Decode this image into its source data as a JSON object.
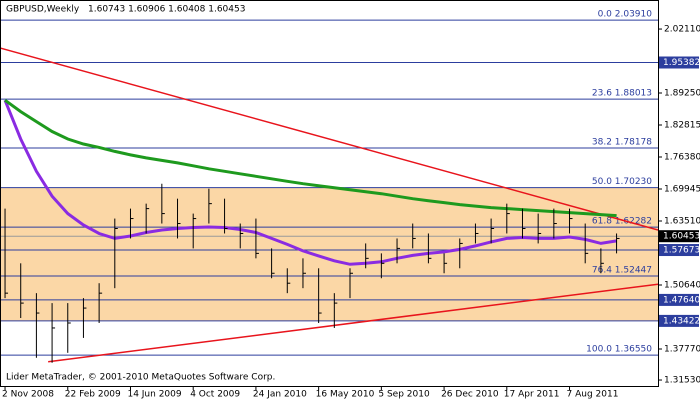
{
  "chart_data": {
    "type": "ohlc",
    "title": "GBPUSD,Weekly",
    "quote": "1.60743 1.60906 1.60408 1.60453",
    "footer": "Lider MetaTrader, © 2001-2010 MetaQuotes Software Corp.",
    "x": [
      "2008-11-02",
      "2008-11-30",
      "2008-12-28",
      "2009-01-25",
      "2009-02-22",
      "2009-03-22",
      "2009-04-19",
      "2009-05-17",
      "2009-06-14",
      "2009-07-12",
      "2009-08-09",
      "2009-09-06",
      "2009-10-04",
      "2009-11-01",
      "2009-11-29",
      "2009-12-27",
      "2010-01-24",
      "2010-02-21",
      "2010-03-21",
      "2010-04-18",
      "2010-05-16",
      "2010-06-13",
      "2010-07-11",
      "2010-08-08",
      "2010-09-05",
      "2010-10-03",
      "2010-10-31",
      "2010-11-28",
      "2010-12-26",
      "2011-01-23",
      "2011-02-20",
      "2011-03-20",
      "2011-04-17",
      "2011-05-15",
      "2011-06-12",
      "2011-07-10",
      "2011-08-07",
      "2011-09-04",
      "2011-10-02",
      "2011-10-30"
    ],
    "high": [
      1.66,
      1.55,
      1.49,
      1.47,
      1.47,
      1.48,
      1.51,
      1.64,
      1.66,
      1.67,
      1.71,
      1.68,
      1.65,
      1.7,
      1.68,
      1.63,
      1.64,
      1.58,
      1.54,
      1.56,
      1.54,
      1.49,
      1.54,
      1.59,
      1.57,
      1.6,
      1.63,
      1.61,
      1.57,
      1.6,
      1.63,
      1.64,
      1.67,
      1.66,
      1.65,
      1.66,
      1.66,
      1.63,
      1.58,
      1.61
    ],
    "low": [
      1.48,
      1.44,
      1.36,
      1.35,
      1.37,
      1.4,
      1.43,
      1.5,
      1.6,
      1.61,
      1.63,
      1.6,
      1.58,
      1.63,
      1.61,
      1.58,
      1.56,
      1.52,
      1.49,
      1.5,
      1.43,
      1.42,
      1.48,
      1.54,
      1.52,
      1.55,
      1.58,
      1.55,
      1.53,
      1.54,
      1.59,
      1.59,
      1.61,
      1.6,
      1.59,
      1.6,
      1.61,
      1.55,
      1.53,
      1.57
    ],
    "close": [
      1.49,
      1.47,
      1.45,
      1.42,
      1.43,
      1.46,
      1.49,
      1.62,
      1.64,
      1.66,
      1.65,
      1.63,
      1.64,
      1.67,
      1.62,
      1.61,
      1.57,
      1.53,
      1.51,
      1.53,
      1.45,
      1.47,
      1.53,
      1.56,
      1.55,
      1.58,
      1.6,
      1.56,
      1.55,
      1.59,
      1.61,
      1.62,
      1.65,
      1.62,
      1.61,
      1.63,
      1.64,
      1.57,
      1.55,
      1.6
    ],
    "bar_color": "#000000",
    "moving_averages": [
      {
        "color": "#8a2be2",
        "values": [
          1.878,
          1.8,
          1.735,
          1.685,
          1.65,
          1.627,
          1.61,
          1.6,
          1.605,
          1.612,
          1.617,
          1.62,
          1.622,
          1.623,
          1.622,
          1.618,
          1.612,
          1.6,
          1.588,
          1.575,
          1.565,
          1.555,
          1.548,
          1.55,
          1.553,
          1.56,
          1.566,
          1.57,
          1.573,
          1.578,
          1.585,
          1.593,
          1.6,
          1.602,
          1.6,
          1.6,
          1.603,
          1.598,
          1.59,
          1.595
        ]
      },
      {
        "color": "#1e9a1e",
        "values": [
          1.878,
          1.855,
          1.835,
          1.815,
          1.8,
          1.79,
          1.783,
          1.775,
          1.768,
          1.762,
          1.757,
          1.752,
          1.746,
          1.74,
          1.735,
          1.73,
          1.725,
          1.72,
          1.715,
          1.71,
          1.706,
          1.702,
          1.698,
          1.694,
          1.69,
          1.685,
          1.68,
          1.676,
          1.672,
          1.668,
          1.665,
          1.662,
          1.66,
          1.658,
          1.656,
          1.654,
          1.652,
          1.65,
          1.648,
          1.646
        ]
      }
    ],
    "trendlines": [
      {
        "color": "#e8141c",
        "x": [
          "2008-10-24",
          "2012-01-12"
        ],
        "y": [
          1.983,
          1.617
        ]
      },
      {
        "color": "#e8141c",
        "x": [
          "2009-01-18",
          "2012-01-12"
        ],
        "y": [
          1.352,
          1.508
        ]
      }
    ],
    "zone": {
      "color": "#fbd7a6",
      "range": [
        1.43422,
        1.7023
      ]
    },
    "fibonacci": {
      "color": "#2c3e9e",
      "levels": [
        {
          "value": 2.0391,
          "label": "0.0 2.03910"
        },
        {
          "value": 1.88013,
          "label": "23.6 1.88013"
        },
        {
          "value": 1.78178,
          "label": "38.2 1.78178"
        },
        {
          "value": 1.7023,
          "label": "50.0 1.70230"
        },
        {
          "value": 1.62282,
          "label": "61.8 1.62282"
        },
        {
          "value": 1.52447,
          "label": "76.4 1.52447"
        },
        {
          "value": 1.3655,
          "label": "100.0 1.36550"
        }
      ]
    },
    "hlines": {
      "color": "#2c3e9e",
      "levels": [
        {
          "value": 1.95382,
          "label": "1.95382"
        },
        {
          "value": 1.57673,
          "label": "1.57673"
        },
        {
          "value": 1.4764,
          "label": "1.47640"
        },
        {
          "value": 1.43422,
          "label": "1.43422"
        }
      ]
    },
    "current_price": {
      "value": 1.60453,
      "label": "1.60453"
    },
    "xlim": [
      "2008-10-24",
      "2012-01-12"
    ],
    "ylim": [
      1.3053,
      2.0795
    ],
    "xticks": [
      {
        "value": "2008-11-02",
        "label": "2 Nov 2008"
      },
      {
        "value": "2009-02-22",
        "label": "22 Feb 2009"
      },
      {
        "value": "2009-06-14",
        "label": "14 Jun 2009"
      },
      {
        "value": "2009-10-04",
        "label": "4 Oct 2009"
      },
      {
        "value": "2010-01-24",
        "label": "24 Jan 2010"
      },
      {
        "value": "2010-05-16",
        "label": "16 May 2010"
      },
      {
        "value": "2010-09-05",
        "label": "5 Sep 2010"
      },
      {
        "value": "2010-12-26",
        "label": "26 Dec 2010"
      },
      {
        "value": "2011-04-17",
        "label": "17 Apr 2011"
      },
      {
        "value": "2011-08-07",
        "label": "7 Aug 2011"
      }
    ],
    "yticks": [
      {
        "value": 2.0211,
        "label": "2.02110"
      },
      {
        "value": 1.8925,
        "label": "1.89250"
      },
      {
        "value": 1.82815,
        "label": "1.82815"
      },
      {
        "value": 1.7638,
        "label": "1.76380"
      },
      {
        "value": 1.69945,
        "label": "1.69945"
      },
      {
        "value": 1.6351,
        "label": "1.63510"
      },
      {
        "value": 1.5064,
        "label": "1.50640"
      },
      {
        "value": 1.3777,
        "label": "1.37770"
      },
      {
        "value": 1.3153,
        "label": "1.31530"
      }
    ]
  }
}
